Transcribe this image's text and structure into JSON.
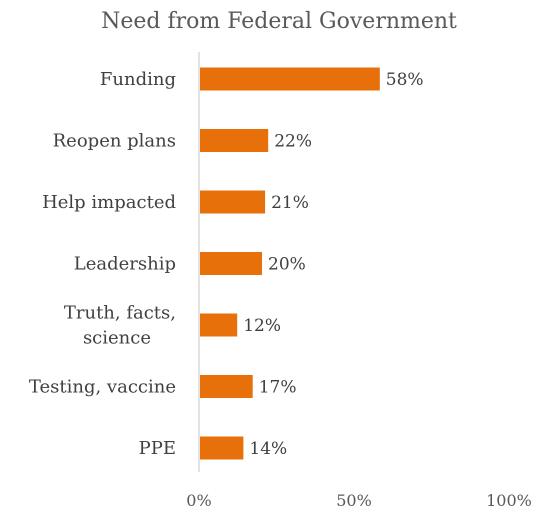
{
  "colors": {
    "bar": "#E8700A",
    "axis_line": "#D9D9D9",
    "text": "#404040"
  },
  "chart_data": {
    "type": "bar",
    "orientation": "horizontal",
    "title": "Need from Federal Government",
    "categories": [
      "Funding",
      "Reopen plans",
      "Help impacted",
      "Leadership",
      "Truth, facts, science",
      "Testing, vaccine",
      "PPE"
    ],
    "category_lines": [
      [
        "Funding"
      ],
      [
        "Reopen plans"
      ],
      [
        "Help impacted"
      ],
      [
        "Leadership"
      ],
      [
        "Truth, facts,",
        "science"
      ],
      [
        "Testing, vaccine"
      ],
      [
        "PPE"
      ]
    ],
    "values": [
      58,
      22,
      21,
      20,
      12,
      17,
      14
    ],
    "data_labels": [
      "58%",
      "22%",
      "21%",
      "20%",
      "12%",
      "17%",
      "14%"
    ],
    "xlim": [
      0,
      100
    ],
    "x_ticks": [
      0,
      50,
      100
    ],
    "x_tick_labels": [
      "0%",
      "50%",
      "100%"
    ],
    "gridlines": false,
    "legend": "none"
  }
}
